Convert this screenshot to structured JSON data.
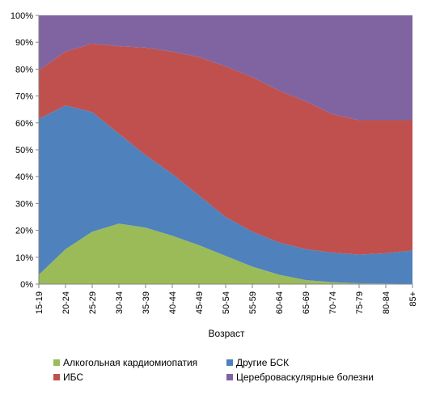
{
  "chart_data": {
    "type": "area",
    "stacked_percent": true,
    "xlabel": "Возраст",
    "ylim": [
      0,
      100
    ],
    "y_ticks": [
      "0%",
      "10%",
      "20%",
      "30%",
      "40%",
      "50%",
      "60%",
      "70%",
      "80%",
      "90%",
      "100%"
    ],
    "categories": [
      "15-19",
      "20-24",
      "25-29",
      "30-34",
      "35-39",
      "40-44",
      "45-49",
      "50-54",
      "55-59",
      "60-64",
      "65-69",
      "70-74",
      "75-79",
      "80-84",
      "85+"
    ],
    "legend_position": "bottom",
    "series": [
      {
        "name": "Алкогольная кардиомиопатия",
        "color": "#9bbb59",
        "values": [
          3.5,
          13,
          19.5,
          22.5,
          21,
          18,
          14.5,
          10.5,
          6.5,
          3.5,
          1.5,
          0.7,
          0.3,
          0.2,
          0.1
        ]
      },
      {
        "name": "Другие БСК",
        "color": "#4f81bd",
        "values": [
          58,
          53.5,
          44.5,
          33.5,
          27,
          23,
          18.5,
          14.5,
          13,
          12,
          11.5,
          11,
          10.7,
          11.3,
          12.4
        ]
      },
      {
        "name": "ИБС",
        "color": "#c0504d",
        "values": [
          18,
          20,
          25.5,
          32.5,
          40,
          45.5,
          51.5,
          56,
          57.5,
          56.5,
          55,
          51.5,
          50,
          49.5,
          48.5
        ]
      },
      {
        "name": "Цереброваскулярные болезни",
        "color": "#8064a2",
        "values": [
          20.5,
          13.5,
          10.5,
          11.5,
          12,
          13.5,
          15.5,
          19,
          23,
          28,
          32,
          36.8,
          39,
          39,
          39
        ]
      }
    ]
  }
}
